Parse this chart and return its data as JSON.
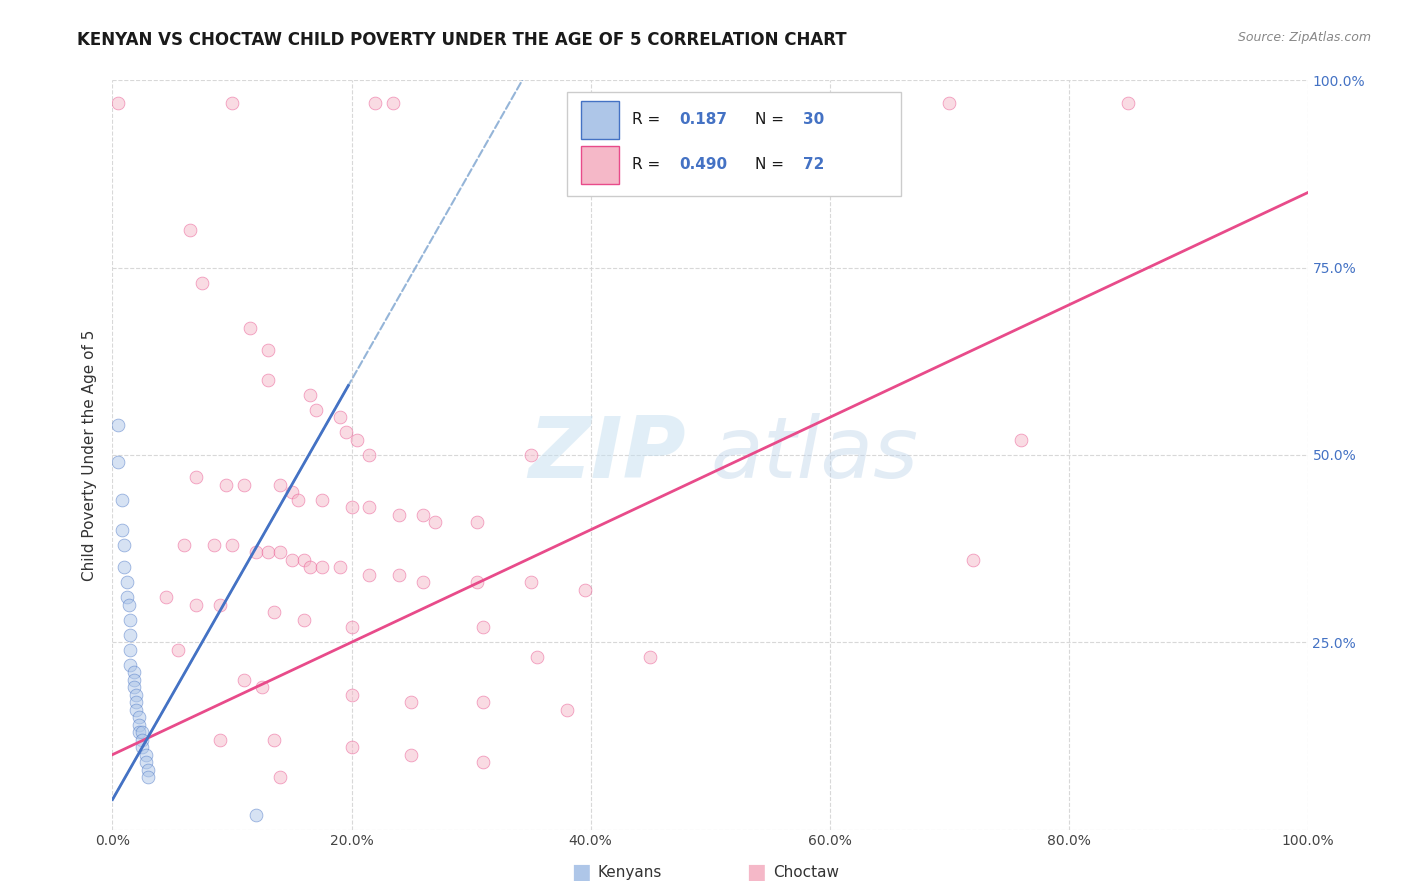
{
  "title": "KENYAN VS CHOCTAW CHILD POVERTY UNDER THE AGE OF 5 CORRELATION CHART",
  "source": "Source: ZipAtlas.com",
  "ylabel": "Child Poverty Under the Age of 5",
  "xlim": [
    0,
    1.0
  ],
  "ylim": [
    0,
    1.0
  ],
  "xticks": [
    0.0,
    0.2,
    0.4,
    0.6,
    0.8,
    1.0
  ],
  "yticks": [
    0.0,
    0.25,
    0.5,
    0.75,
    1.0
  ],
  "xticklabels": [
    "0.0%",
    "20.0%",
    "40.0%",
    "60.0%",
    "80.0%",
    "100.0%"
  ],
  "yticklabels_right": [
    "",
    "25.0%",
    "50.0%",
    "75.0%",
    "100.0%"
  ],
  "kenyan_color": "#aec6e8",
  "choctaw_color": "#f5b8c8",
  "kenyan_edge_color": "#4472C4",
  "choctaw_edge_color": "#E84B8A",
  "kenyan_line_color": "#4472C4",
  "choctaw_line_color": "#E84B8A",
  "kenyan_scatter": [
    [
      0.005,
      0.54
    ],
    [
      0.005,
      0.49
    ],
    [
      0.008,
      0.44
    ],
    [
      0.008,
      0.4
    ],
    [
      0.01,
      0.38
    ],
    [
      0.01,
      0.35
    ],
    [
      0.012,
      0.33
    ],
    [
      0.012,
      0.31
    ],
    [
      0.014,
      0.3
    ],
    [
      0.015,
      0.28
    ],
    [
      0.015,
      0.26
    ],
    [
      0.015,
      0.24
    ],
    [
      0.015,
      0.22
    ],
    [
      0.018,
      0.21
    ],
    [
      0.018,
      0.2
    ],
    [
      0.018,
      0.19
    ],
    [
      0.02,
      0.18
    ],
    [
      0.02,
      0.17
    ],
    [
      0.02,
      0.16
    ],
    [
      0.022,
      0.15
    ],
    [
      0.022,
      0.14
    ],
    [
      0.022,
      0.13
    ],
    [
      0.025,
      0.13
    ],
    [
      0.025,
      0.12
    ],
    [
      0.025,
      0.11
    ],
    [
      0.028,
      0.1
    ],
    [
      0.028,
      0.09
    ],
    [
      0.03,
      0.08
    ],
    [
      0.03,
      0.07
    ],
    [
      0.12,
      0.02
    ]
  ],
  "choctaw_scatter": [
    [
      0.005,
      0.97
    ],
    [
      0.1,
      0.97
    ],
    [
      0.22,
      0.97
    ],
    [
      0.235,
      0.97
    ],
    [
      0.7,
      0.97
    ],
    [
      0.85,
      0.97
    ],
    [
      0.065,
      0.8
    ],
    [
      0.075,
      0.73
    ],
    [
      0.115,
      0.67
    ],
    [
      0.13,
      0.64
    ],
    [
      0.13,
      0.6
    ],
    [
      0.165,
      0.58
    ],
    [
      0.17,
      0.56
    ],
    [
      0.19,
      0.55
    ],
    [
      0.195,
      0.53
    ],
    [
      0.205,
      0.52
    ],
    [
      0.215,
      0.5
    ],
    [
      0.35,
      0.5
    ],
    [
      0.07,
      0.47
    ],
    [
      0.095,
      0.46
    ],
    [
      0.11,
      0.46
    ],
    [
      0.14,
      0.46
    ],
    [
      0.15,
      0.45
    ],
    [
      0.155,
      0.44
    ],
    [
      0.175,
      0.44
    ],
    [
      0.2,
      0.43
    ],
    [
      0.215,
      0.43
    ],
    [
      0.24,
      0.42
    ],
    [
      0.26,
      0.42
    ],
    [
      0.27,
      0.41
    ],
    [
      0.305,
      0.41
    ],
    [
      0.06,
      0.38
    ],
    [
      0.085,
      0.38
    ],
    [
      0.1,
      0.38
    ],
    [
      0.12,
      0.37
    ],
    [
      0.13,
      0.37
    ],
    [
      0.14,
      0.37
    ],
    [
      0.15,
      0.36
    ],
    [
      0.16,
      0.36
    ],
    [
      0.165,
      0.35
    ],
    [
      0.175,
      0.35
    ],
    [
      0.19,
      0.35
    ],
    [
      0.215,
      0.34
    ],
    [
      0.24,
      0.34
    ],
    [
      0.26,
      0.33
    ],
    [
      0.305,
      0.33
    ],
    [
      0.35,
      0.33
    ],
    [
      0.395,
      0.32
    ],
    [
      0.045,
      0.31
    ],
    [
      0.07,
      0.3
    ],
    [
      0.09,
      0.3
    ],
    [
      0.135,
      0.29
    ],
    [
      0.16,
      0.28
    ],
    [
      0.2,
      0.27
    ],
    [
      0.31,
      0.27
    ],
    [
      0.355,
      0.23
    ],
    [
      0.45,
      0.23
    ],
    [
      0.72,
      0.36
    ],
    [
      0.76,
      0.52
    ],
    [
      0.055,
      0.24
    ],
    [
      0.11,
      0.2
    ],
    [
      0.125,
      0.19
    ],
    [
      0.2,
      0.18
    ],
    [
      0.25,
      0.17
    ],
    [
      0.31,
      0.17
    ],
    [
      0.38,
      0.16
    ],
    [
      0.09,
      0.12
    ],
    [
      0.135,
      0.12
    ],
    [
      0.2,
      0.11
    ],
    [
      0.25,
      0.1
    ],
    [
      0.31,
      0.09
    ],
    [
      0.14,
      0.07
    ]
  ],
  "kenyan_slope": 2.8,
  "kenyan_intercept": 0.04,
  "choctaw_slope": 0.75,
  "choctaw_intercept": 0.1,
  "bg_color": "#ffffff",
  "grid_color": "#d8d8d8",
  "title_fontsize": 12,
  "axis_label_fontsize": 11,
  "tick_fontsize": 10,
  "marker_size": 85,
  "marker_alpha": 0.5
}
